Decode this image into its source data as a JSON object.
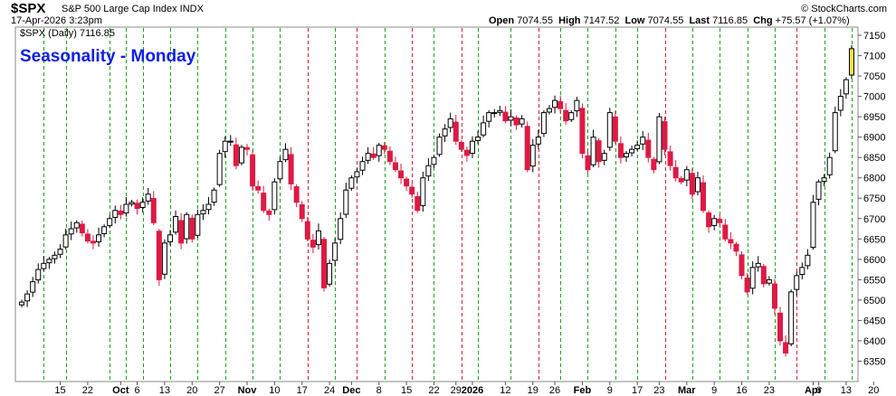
{
  "header": {
    "symbol": "$SPX",
    "description": "S&P 500 Large Cap Index INDX",
    "datetime": "17-Apr-2026 3:23pm",
    "brand": "© StockCharts.com",
    "open_label": "Open",
    "open": "7074.55",
    "high_label": "High",
    "high": "7147.52",
    "low_label": "Low",
    "low": "7074.55",
    "last_label": "Last",
    "last": "7116.85",
    "chg_label": "Chg",
    "chg": "+75.57 (+1.07%)"
  },
  "colors": {
    "up_candle": "#ffffff",
    "down_candle": "#dd1a44",
    "last_candle": "#f2e24a",
    "green_vline": "#1aa31a",
    "red_vline": "#cc2233",
    "title": "#1020e0"
  },
  "chart_data": {
    "type": "candlestick",
    "title": "Seasonality - Monday",
    "legend": "$SPX (Daily) 7116.85",
    "ylim": [
      6300,
      7170
    ],
    "y_ticks": [
      6350,
      6400,
      6450,
      6500,
      6550,
      6600,
      6650,
      6700,
      6750,
      6800,
      6850,
      6900,
      6950,
      7000,
      7050,
      7100,
      7150
    ],
    "x_ticks": [
      {
        "label": "15",
        "idx": 7
      },
      {
        "label": "22",
        "idx": 12
      },
      {
        "label": "Oct",
        "idx": 18,
        "bold": true
      },
      {
        "label": "6",
        "idx": 21
      },
      {
        "label": "13",
        "idx": 26
      },
      {
        "label": "20",
        "idx": 31
      },
      {
        "label": "27",
        "idx": 36
      },
      {
        "label": "Nov",
        "idx": 41,
        "bold": true
      },
      {
        "label": "10",
        "idx": 46
      },
      {
        "label": "17",
        "idx": 51
      },
      {
        "label": "24",
        "idx": 56
      },
      {
        "label": "Dec",
        "idx": 60,
        "bold": true
      },
      {
        "label": "8",
        "idx": 65
      },
      {
        "label": "15",
        "idx": 70
      },
      {
        "label": "22",
        "idx": 75
      },
      {
        "label": "29",
        "idx": 79
      },
      {
        "label": "2026",
        "idx": 82,
        "bold": true
      },
      {
        "label": "12",
        "idx": 88
      },
      {
        "label": "19",
        "idx": 93
      },
      {
        "label": "26",
        "idx": 97
      },
      {
        "label": "Feb",
        "idx": 102,
        "bold": true
      },
      {
        "label": "9",
        "idx": 107
      },
      {
        "label": "17",
        "idx": 112
      },
      {
        "label": "23",
        "idx": 116
      },
      {
        "label": "Mar",
        "idx": 121,
        "bold": true
      },
      {
        "label": "9",
        "idx": 126
      },
      {
        "label": "16",
        "idx": 131
      },
      {
        "label": "23",
        "idx": 136
      },
      {
        "label": "Apr",
        "idx": 144,
        "bold": true
      },
      {
        "label": "6",
        "idx": 145
      },
      {
        "label": "13",
        "idx": 150
      },
      {
        "label": "20",
        "idx": 155
      }
    ],
    "monday_lines": [
      {
        "idx": 4,
        "color": "green"
      },
      {
        "idx": 8,
        "color": "green"
      },
      {
        "idx": 16,
        "color": "green"
      },
      {
        "idx": 19,
        "color": "green"
      },
      {
        "idx": 22,
        "color": "green"
      },
      {
        "idx": 27,
        "color": "green"
      },
      {
        "idx": 32,
        "color": "green"
      },
      {
        "idx": 37,
        "color": "green"
      },
      {
        "idx": 42,
        "color": "green"
      },
      {
        "idx": 47,
        "color": "green"
      },
      {
        "idx": 52,
        "color": "red"
      },
      {
        "idx": 57,
        "color": "green"
      },
      {
        "idx": 61,
        "color": "red"
      },
      {
        "idx": 66,
        "color": "green"
      },
      {
        "idx": 71,
        "color": "red"
      },
      {
        "idx": 75,
        "color": "green"
      },
      {
        "idx": 80,
        "color": "red"
      },
      {
        "idx": 83,
        "color": "green"
      },
      {
        "idx": 89,
        "color": "green"
      },
      {
        "idx": 94,
        "color": "red"
      },
      {
        "idx": 98,
        "color": "green"
      },
      {
        "idx": 103,
        "color": "green"
      },
      {
        "idx": 108,
        "color": "green"
      },
      {
        "idx": 112,
        "color": "green"
      },
      {
        "idx": 117,
        "color": "red"
      },
      {
        "idx": 122,
        "color": "green"
      },
      {
        "idx": 127,
        "color": "green"
      },
      {
        "idx": 132,
        "color": "green"
      },
      {
        "idx": 137,
        "color": "green"
      },
      {
        "idx": 141,
        "color": "red"
      },
      {
        "idx": 146,
        "color": "green"
      },
      {
        "idx": 151,
        "color": "green"
      }
    ],
    "close": [
      6495,
      6515,
      6545,
      6575,
      6590,
      6600,
      6610,
      6625,
      6660,
      6675,
      6690,
      6665,
      6645,
      6640,
      6660,
      6680,
      6700,
      6720,
      6710,
      6735,
      6740,
      6725,
      6740,
      6760,
      6690,
      6550,
      6640,
      6660,
      6705,
      6640,
      6710,
      6650,
      6710,
      6720,
      6735,
      6770,
      6860,
      6890,
      6890,
      6830,
      6875,
      6870,
      6780,
      6770,
      6720,
      6710,
      6790,
      6840,
      6870,
      6785,
      6740,
      6700,
      6650,
      6630,
      6670,
      6530,
      6590,
      6640,
      6700,
      6770,
      6800,
      6815,
      6840,
      6860,
      6850,
      6880,
      6870,
      6840,
      6820,
      6800,
      6780,
      6760,
      6720,
      6800,
      6830,
      6850,
      6900,
      6920,
      6945,
      6890,
      6870,
      6855,
      6890,
      6900,
      6935,
      6960,
      6960,
      6965,
      6940,
      6950,
      6930,
      6945,
      6820,
      6880,
      6900,
      6960,
      6970,
      6990,
      6970,
      6940,
      6960,
      6990,
      6860,
      6820,
      6900,
      6840,
      6860,
      6960,
      6890,
      6850,
      6860,
      6870,
      6880,
      6900,
      6850,
      6820,
      6950,
      6870,
      6830,
      6800,
      6790,
      6820,
      6760,
      6800,
      6720,
      6680,
      6700,
      6690,
      6650,
      6640,
      6620,
      6560,
      6520,
      6580,
      6590,
      6540,
      6550,
      6480,
      6400,
      6370,
      6520,
      6560,
      6580,
      6610,
      6740,
      6790,
      6800,
      6850,
      6960,
      7000,
      7041,
      7117
    ]
  }
}
